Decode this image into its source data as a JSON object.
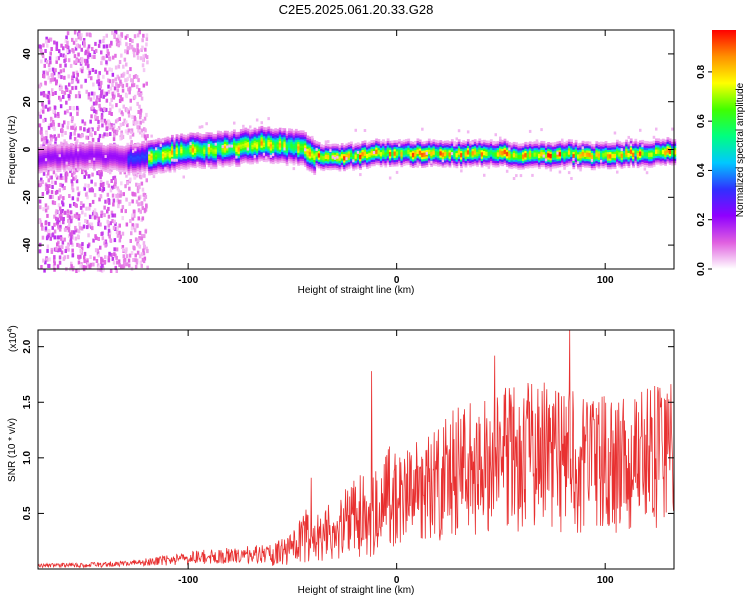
{
  "page": {
    "title": "C2E5.2025.061.20.33.G28"
  },
  "chart_data": [
    {
      "id": "spectrogram",
      "type": "heatmap",
      "title": "C2E5.2025.061.20.33.G28",
      "xlabel": "Height of straight line (km)",
      "ylabel": "Frequency (Hz)",
      "xlim": [
        -172,
        133
      ],
      "ylim": [
        -50,
        50
      ],
      "xticks": [
        -100,
        0,
        100
      ],
      "xtick_labels": [
        "-100",
        "0",
        "100"
      ],
      "yticks": [
        -40,
        -20,
        0,
        20,
        40
      ],
      "ytick_labels": [
        "-40",
        "-20",
        "0",
        "20",
        "40"
      ],
      "colorbar": {
        "label": "Normalized spectral amplitude",
        "range": [
          0,
          0.97
        ],
        "ticks": [
          0,
          0.2,
          0.4,
          0.6,
          0.8
        ],
        "tick_labels": [
          "0.0",
          "0.2",
          "0.4",
          "0.6",
          "0.8"
        ],
        "colormap": [
          "#ffffff",
          "#e060e0",
          "#9000ff",
          "#3030ff",
          "#00c8ff",
          "#00ff80",
          "#40ff00",
          "#ffff00",
          "#ff9000",
          "#ff0000"
        ]
      },
      "ridge_frequency": {
        "x": [
          -170,
          -150,
          -130,
          -115,
          -100,
          -80,
          -65,
          -55,
          -45,
          -40,
          -30,
          -20,
          -10,
          0,
          10,
          20,
          30,
          40,
          50,
          60,
          70,
          80,
          90,
          100,
          110,
          120,
          133
        ],
        "y": [
          -3,
          -2,
          -3,
          -2,
          0,
          1,
          3,
          2,
          1,
          -2,
          -3,
          -2,
          -1,
          -1,
          -1,
          -1,
          -1,
          -1,
          -1,
          -2,
          -2,
          -1,
          -2,
          -2,
          -1,
          -1,
          0
        ]
      },
      "noise_region_x": [
        -172,
        -120
      ]
    },
    {
      "id": "snr",
      "type": "line",
      "title": "",
      "xlabel": "Height of straight line (km)",
      "ylabel": "SNR (10 * v/v)",
      "y_multiplier_label": "(x10",
      "y_multiplier_exp": "4",
      "y_multiplier_close": ")",
      "xlim": [
        -172,
        133
      ],
      "ylim": [
        0,
        2.15
      ],
      "xticks": [
        -100,
        0,
        100
      ],
      "xtick_labels": [
        "-100",
        "0",
        "100"
      ],
      "yticks": [
        0.5,
        1.0,
        1.5,
        2.0
      ],
      "ytick_labels": [
        "0.5",
        "1.0",
        "1.5",
        "2.0"
      ],
      "line_color": "#e83030",
      "envelope": {
        "x": [
          -172,
          -140,
          -120,
          -100,
          -80,
          -60,
          -50,
          -45,
          -40,
          -30,
          -20,
          -10,
          0,
          10,
          20,
          30,
          40,
          50,
          60,
          70,
          80,
          90,
          100,
          110,
          120,
          133
        ],
        "y": [
          0.03,
          0.04,
          0.06,
          0.1,
          0.12,
          0.14,
          0.18,
          0.3,
          0.3,
          0.35,
          0.45,
          0.55,
          0.65,
          0.75,
          0.85,
          0.95,
          1.0,
          1.05,
          1.1,
          1.1,
          1.08,
          1.05,
          1.05,
          1.08,
          1.1,
          1.1
        ]
      },
      "notable_points": [
        {
          "x": -41,
          "y": 0.82
        },
        {
          "x": -12,
          "y": 1.78
        },
        {
          "x": 83,
          "y": 2.15
        },
        {
          "x": 47,
          "y": 1.92
        }
      ]
    }
  ]
}
